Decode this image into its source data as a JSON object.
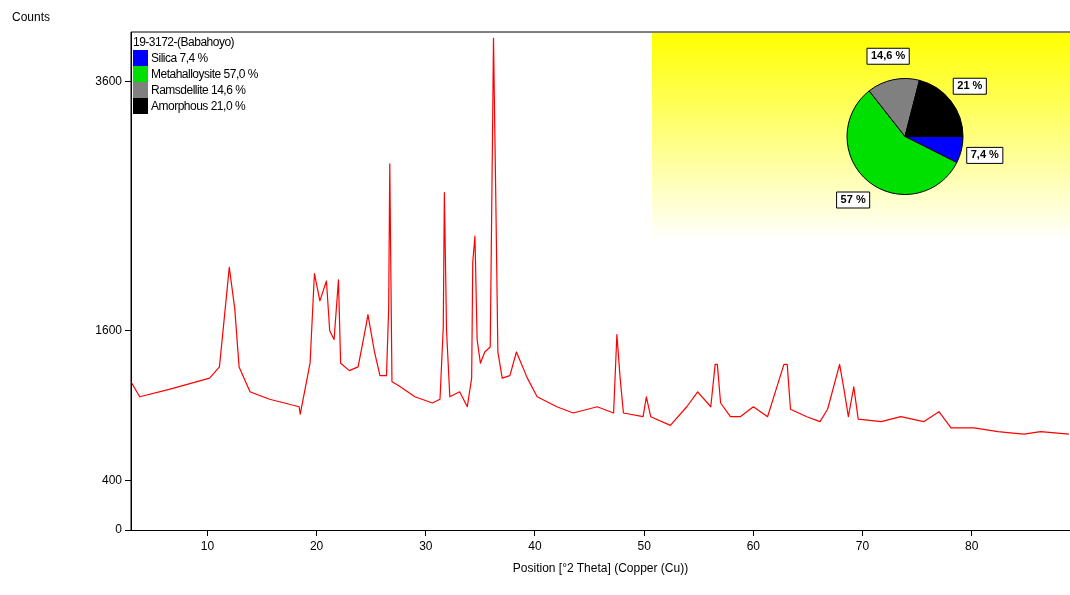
{
  "chart_data": [
    {
      "type": "line",
      "xlabel": "Position [°2 Theta] (Copper (Cu))",
      "ylabel": "Counts",
      "xlim": [
        3,
        89
      ],
      "ylim": [
        0,
        4000
      ],
      "xticks": [
        10,
        20,
        30,
        40,
        50,
        60,
        70,
        80
      ],
      "yticks": [
        0,
        400,
        1600,
        3600
      ],
      "grid": false,
      "legend": false,
      "marker": "none",
      "line_style": "solid",
      "series": [
        {
          "color": "#ff0000",
          "x": [
            3.0,
            3.8,
            6.5,
            10.2,
            11.1,
            11.7,
            12.0,
            12.5,
            12.9,
            13.9,
            15.7,
            18.4,
            18.5,
            19.4,
            19.8,
            20.3,
            20.9,
            21.2,
            21.6,
            22.0,
            22.2,
            23.0,
            23.8,
            24.5,
            24.7,
            25.3,
            25.8,
            26.4,
            26.6,
            26.7,
            26.9,
            27.5,
            29.0,
            30.6,
            31.3,
            31.6,
            31.7,
            31.9,
            32.2,
            33.1,
            33.8,
            34.2,
            34.3,
            34.5,
            34.7,
            35.0,
            35.4,
            35.9,
            36.1,
            36.2,
            36.4,
            36.6,
            37.0,
            37.7,
            38.3,
            39.3,
            40.2,
            42.0,
            43.5,
            45.7,
            47.2,
            47.5,
            47.8,
            48.1,
            49.9,
            50.2,
            50.6,
            52.4,
            53.9,
            54.9,
            56.1,
            56.5,
            56.7,
            57.0,
            57.9,
            58.8,
            60.0,
            61.3,
            62.3,
            62.8,
            63.1,
            63.4,
            64.9,
            66.1,
            66.8,
            67.9,
            68.3,
            68.7,
            69.2,
            69.6,
            71.7,
            73.5,
            75.6,
            77.0,
            78.1,
            80.2,
            82.4,
            84.8,
            86.3,
            88.9
          ],
          "values": [
            1190,
            1070,
            1130,
            1220,
            1310,
            1840,
            2110,
            1780,
            1310,
            1110,
            1050,
            990,
            930,
            1340,
            2060,
            1840,
            2000,
            1600,
            1530,
            2010,
            1340,
            1280,
            1310,
            1630,
            1730,
            1430,
            1240,
            1240,
            1780,
            2940,
            1190,
            1160,
            1070,
            1020,
            1050,
            1630,
            2710,
            1600,
            1070,
            1110,
            990,
            1220,
            2150,
            2360,
            1530,
            1340,
            1430,
            1470,
            3090,
            3950,
            2730,
            1430,
            1220,
            1240,
            1430,
            1220,
            1070,
            990,
            940,
            990,
            940,
            1570,
            1220,
            940,
            910,
            1070,
            910,
            840,
            990,
            1110,
            990,
            1330,
            1330,
            1020,
            910,
            910,
            990,
            910,
            1190,
            1330,
            1330,
            970,
            910,
            870,
            970,
            1330,
            1130,
            910,
            1150,
            890,
            870,
            910,
            870,
            950,
            820,
            820,
            790,
            770,
            790,
            770
          ]
        }
      ]
    },
    {
      "type": "pie",
      "legend": "top left",
      "legend_title": "19-3172-(Babahoyo)",
      "categories": [
        "Silica 7,4 %",
        "Metahalloysite 57,0 %",
        "Ramsdellite 14,6 %",
        "Amorphous 21,0 %"
      ],
      "values": [
        7.4,
        57.0,
        14.6,
        21.0
      ],
      "colors": [
        "#0000ff",
        "#00e000",
        "#808080",
        "#000000"
      ],
      "value_labels": [
        "7,4 %",
        "57 %",
        "14,6 %",
        "21 %"
      ]
    }
  ]
}
